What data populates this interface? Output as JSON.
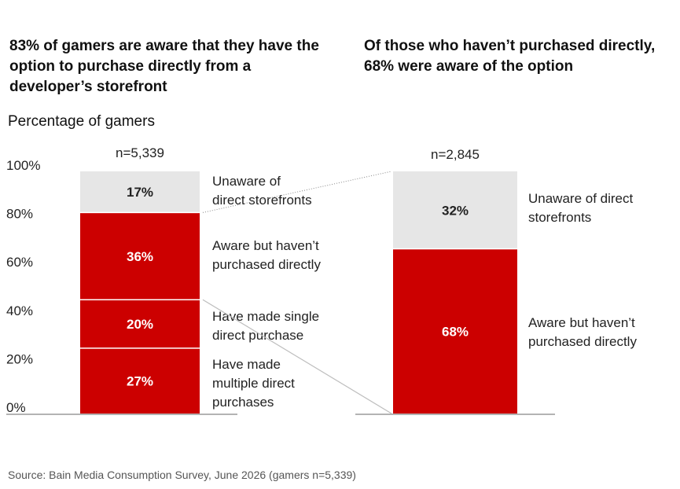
{
  "titles": {
    "left": "83% of gamers are aware that they have the option to purchase directly from a developer’s storefront",
    "right": "Of those who haven’t purchased directly, 68% were aware of the option"
  },
  "ylabel": "Percentage of gamers",
  "source": "Source: Bain Media Consumption Survey, June 2026 (gamers n=5,339)",
  "colors": {
    "red": "#cc0000",
    "gray": "#e6e6e6",
    "axis": "#9a9a9a"
  },
  "chart_data": [
    {
      "type": "bar",
      "stacked": true,
      "n_label": "n=5,339",
      "ylim": [
        0,
        100
      ],
      "yticks": [
        "0%",
        "20%",
        "40%",
        "60%",
        "80%",
        "100%"
      ],
      "series": [
        {
          "name": "Have made multiple direct purchases",
          "value": 27,
          "label": "27%",
          "color": "red",
          "legend": [
            "Have made",
            "multiple direct",
            "purchases"
          ]
        },
        {
          "name": "Have made single direct purchase",
          "value": 20,
          "label": "20%",
          "color": "red",
          "legend": [
            "Have made single",
            "direct purchase"
          ]
        },
        {
          "name": "Aware but haven’t purchased directly",
          "value": 36,
          "label": "36%",
          "color": "red",
          "legend": [
            "Aware but haven’t",
            "purchased directly"
          ]
        },
        {
          "name": "Unaware of direct storefronts",
          "value": 17,
          "label": "17%",
          "color": "gray",
          "legend": [
            "Unaware of",
            "direct storefronts"
          ]
        }
      ]
    },
    {
      "type": "bar",
      "stacked": true,
      "n_label": "n=2,845",
      "ylim": [
        0,
        100
      ],
      "series": [
        {
          "name": "Aware but haven’t purchased directly",
          "value": 68,
          "label": "68%",
          "color": "red",
          "legend": [
            "Aware but haven’t",
            "purchased directly"
          ]
        },
        {
          "name": "Unaware of direct storefronts",
          "value": 32,
          "label": "32%",
          "color": "gray",
          "legend": [
            "Unaware of direct",
            "storefronts"
          ]
        }
      ]
    }
  ]
}
